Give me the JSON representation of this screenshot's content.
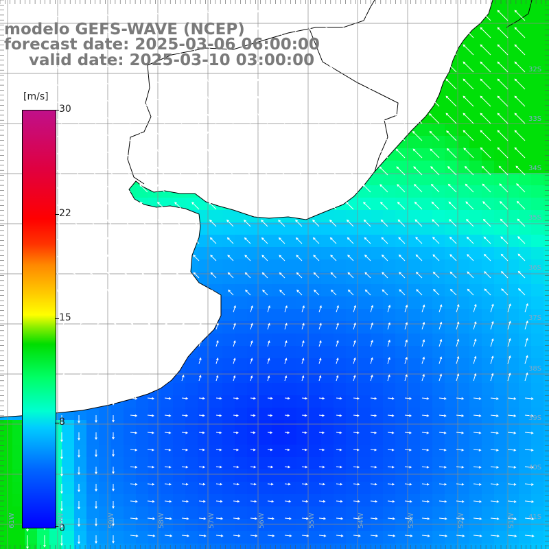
{
  "titles": {
    "model": "modelo GEFS-WAVE (NCEP)",
    "forecast": "forecast date: 2025-03-06 06:00:00",
    "valid": "valid date: 2025-03-10 03:00:00"
  },
  "colorbar": {
    "unit": "[m/s]",
    "ticks": [
      "30",
      "22",
      "15",
      "8",
      "0"
    ],
    "min": 0,
    "max": 30,
    "colors": [
      "#0000ff",
      "#00ccff",
      "#00ff66",
      "#ffff00",
      "#ff8800",
      "#ff0000",
      "#c0108a"
    ]
  },
  "map": {
    "land_color": "#ffffff",
    "coast_color": "#000000",
    "grid_color": "#888888",
    "arrow_color": "#ffffff",
    "lat_labels": [
      "32S",
      "33S",
      "34S",
      "35S",
      "36S",
      "37S",
      "38S",
      "39S",
      "40S",
      "41S"
    ],
    "lon_labels": [
      "61W",
      "60W",
      "59W",
      "58W",
      "57W",
      "56W",
      "55W",
      "54W",
      "53W",
      "52W",
      "51W"
    ]
  }
}
